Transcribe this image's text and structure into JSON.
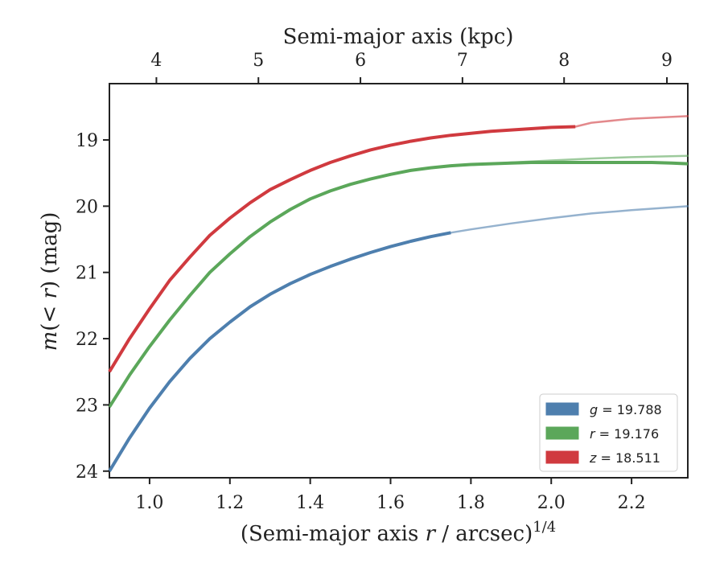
{
  "chart_data": {
    "type": "line",
    "title": "",
    "xlabel_prefix": "(Semi-major axis ",
    "xlabel_var": "r",
    "xlabel_suffix": " / arcsec)",
    "xlabel_exp": "1/4",
    "ylabel_prefix": "m",
    "ylabel_mid": "(< ",
    "ylabel_var": "r",
    "ylabel_suffix": ") (mag)",
    "top_xlabel": "Semi-major axis (kpc)",
    "xlim": [
      0.9,
      2.34
    ],
    "ylim": [
      24.1,
      18.15
    ],
    "y_inverted": true,
    "xticks": [
      "1.0",
      "1.2",
      "1.4",
      "1.6",
      "1.8",
      "2.0",
      "2.2"
    ],
    "yticks": [
      "19",
      "20",
      "21",
      "22",
      "23",
      "24"
    ],
    "top_xticks": [
      "4",
      "5",
      "6",
      "7",
      "8",
      "9"
    ],
    "top_xtick_positions": [
      1.017,
      1.271,
      1.525,
      1.779,
      2.032,
      2.288
    ],
    "legend_position": "lower right",
    "series": [
      {
        "name": "g = 19.788",
        "legend_var": "g",
        "legend_value": "19.788",
        "color": "#4e7fae",
        "x": [
          0.9,
          0.95,
          1.0,
          1.05,
          1.1,
          1.15,
          1.2,
          1.25,
          1.3,
          1.35,
          1.4,
          1.45,
          1.5,
          1.55,
          1.6,
          1.65,
          1.7,
          1.75
        ],
        "y": [
          24.0,
          23.5,
          23.05,
          22.65,
          22.3,
          22.0,
          21.75,
          21.52,
          21.33,
          21.17,
          21.03,
          20.91,
          20.8,
          20.7,
          20.61,
          20.53,
          20.46,
          20.4
        ],
        "model_x": [
          1.75,
          1.8,
          1.9,
          2.0,
          2.1,
          2.2,
          2.34
        ],
        "model_y": [
          20.4,
          20.35,
          20.26,
          20.18,
          20.11,
          20.06,
          20.0
        ]
      },
      {
        "name": "r = 19.176",
        "legend_var": "r",
        "legend_value": "19.176",
        "color": "#5ba75a",
        "x": [
          0.9,
          0.95,
          1.0,
          1.05,
          1.1,
          1.15,
          1.2,
          1.25,
          1.3,
          1.35,
          1.4,
          1.45,
          1.5,
          1.55,
          1.6,
          1.65,
          1.7,
          1.75,
          1.8,
          1.85,
          1.9,
          1.95,
          2.0,
          2.05,
          2.1,
          2.15,
          2.2,
          2.25,
          2.3,
          2.34
        ],
        "y": [
          23.03,
          22.55,
          22.12,
          21.72,
          21.35,
          21.0,
          20.72,
          20.46,
          20.24,
          20.05,
          19.89,
          19.77,
          19.67,
          19.59,
          19.52,
          19.46,
          19.42,
          19.39,
          19.37,
          19.36,
          19.35,
          19.34,
          19.34,
          19.34,
          19.34,
          19.34,
          19.34,
          19.34,
          19.35,
          19.36
        ],
        "model_x": [
          1.8,
          1.9,
          2.0,
          2.1,
          2.2,
          2.34
        ],
        "model_y": [
          19.38,
          19.34,
          19.31,
          19.28,
          19.26,
          19.24
        ]
      },
      {
        "name": "z = 18.511",
        "legend_var": "z",
        "legend_value": "18.511",
        "color": "#d03a3f",
        "x": [
          0.9,
          0.95,
          1.0,
          1.05,
          1.1,
          1.15,
          1.2,
          1.25,
          1.3,
          1.35,
          1.4,
          1.45,
          1.5,
          1.55,
          1.6,
          1.65,
          1.7,
          1.75,
          1.8,
          1.85,
          1.9,
          1.95,
          2.0,
          2.06
        ],
        "y": [
          22.5,
          22.0,
          21.55,
          21.12,
          20.77,
          20.44,
          20.18,
          19.95,
          19.75,
          19.6,
          19.46,
          19.34,
          19.24,
          19.15,
          19.08,
          19.02,
          18.97,
          18.93,
          18.9,
          18.87,
          18.85,
          18.83,
          18.81,
          18.8
        ],
        "model_x": [
          2.06,
          2.1,
          2.2,
          2.34
        ],
        "model_y": [
          18.8,
          18.74,
          18.68,
          18.64
        ]
      }
    ]
  }
}
